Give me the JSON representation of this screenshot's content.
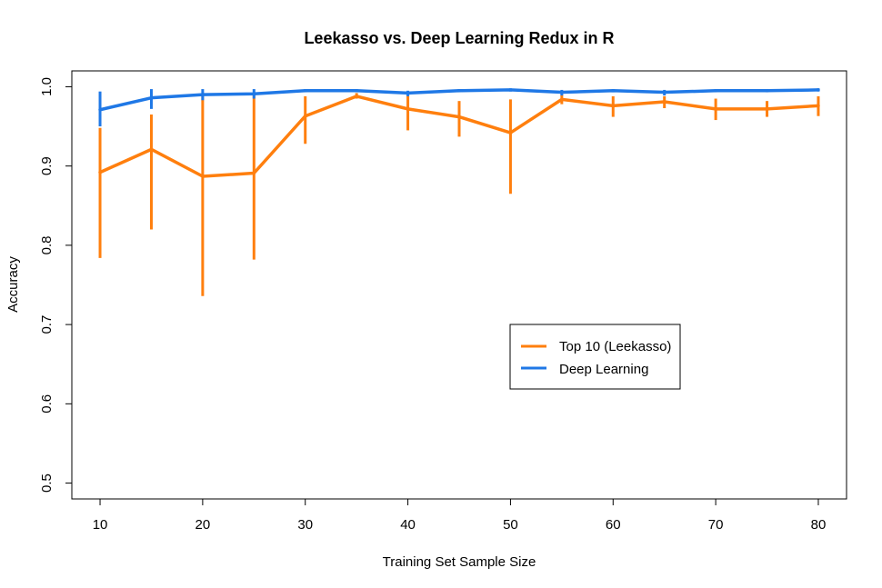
{
  "chart_data": {
    "type": "line",
    "title": "Leekasso vs. Deep Learning Redux in R",
    "xlabel": "Training Set Sample Size",
    "ylabel": "Accuracy",
    "xlim": [
      7.25,
      82.75
    ],
    "ylim": [
      0.48,
      1.02
    ],
    "xticks": [
      10,
      20,
      30,
      40,
      50,
      60,
      70,
      80
    ],
    "yticks": [
      0.5,
      0.6,
      0.7,
      0.8,
      0.9,
      1.0
    ],
    "ytick_labels": [
      "0.5",
      "0.6",
      "0.7",
      "0.8",
      "0.9",
      "1.0"
    ],
    "x": [
      10,
      15,
      20,
      25,
      30,
      35,
      40,
      45,
      50,
      55,
      60,
      65,
      70,
      75,
      80
    ],
    "grid": false,
    "legend": {
      "position": "center-right",
      "box": true
    },
    "series": [
      {
        "name": "Top 10 (Leekasso)",
        "color": "#FF7F0E",
        "values": [
          0.892,
          0.921,
          0.887,
          0.891,
          0.963,
          0.988,
          0.972,
          0.962,
          0.942,
          0.984,
          0.976,
          0.981,
          0.972,
          0.972,
          0.976
        ],
        "lower": [
          0.784,
          0.82,
          0.736,
          0.782,
          0.928,
          0.985,
          0.945,
          0.937,
          0.865,
          0.978,
          0.962,
          0.973,
          0.958,
          0.962,
          0.963
        ],
        "upper": [
          0.948,
          0.965,
          0.988,
          0.99,
          0.988,
          0.992,
          0.992,
          0.982,
          0.984,
          0.99,
          0.988,
          0.988,
          0.985,
          0.982,
          0.988
        ]
      },
      {
        "name": "Deep Learning",
        "color": "#1F78E6",
        "values": [
          0.971,
          0.986,
          0.99,
          0.991,
          0.995,
          0.995,
          0.992,
          0.995,
          0.996,
          0.993,
          0.995,
          0.993,
          0.995,
          0.995,
          0.996
        ],
        "lower": [
          0.95,
          0.972,
          0.983,
          0.985,
          0.993,
          0.993,
          0.988,
          0.993,
          0.994,
          0.989,
          0.993,
          0.989,
          0.993,
          0.993,
          0.994
        ],
        "upper": [
          0.994,
          0.997,
          0.997,
          0.997,
          0.997,
          0.997,
          0.995,
          0.997,
          0.998,
          0.996,
          0.997,
          0.996,
          0.997,
          0.997,
          0.998
        ]
      }
    ]
  }
}
